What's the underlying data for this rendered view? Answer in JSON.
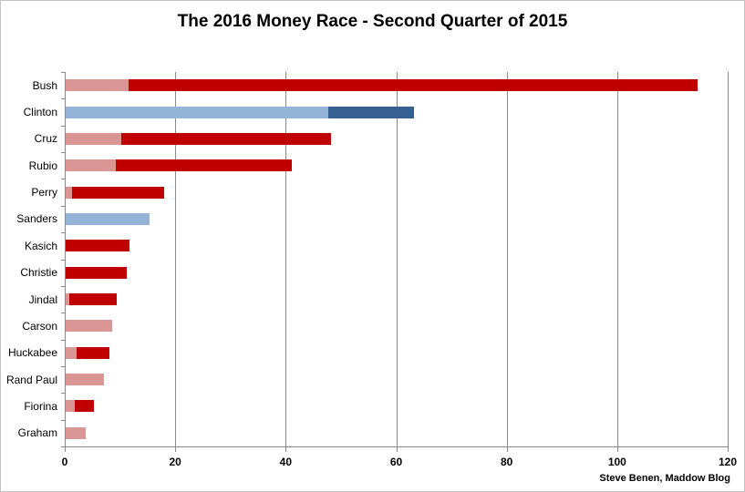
{
  "title": "The 2016 Money Race - Second Quarter of 2015",
  "attribution": "Steve Benen, Maddow Blog",
  "colors": {
    "light_red": "#d99694",
    "dark_red": "#c00000",
    "light_blue": "#95b3d7",
    "dark_blue": "#366092",
    "gridline": "#898989",
    "outer_border": "#c3c3c3"
  },
  "chart_data": {
    "type": "bar",
    "orientation": "horizontal",
    "stacked": true,
    "title": "The 2016 Money Race - Second Quarter of 2015",
    "xlabel": "",
    "ylabel": "",
    "xlim": [
      0,
      120
    ],
    "xticks": [
      0,
      20,
      40,
      60,
      80,
      100,
      120
    ],
    "grid": true,
    "legend": false,
    "categories": [
      "Bush",
      "Clinton",
      "Cruz",
      "Rubio",
      "Perry",
      "Sanders",
      "Kasich",
      "Christie",
      "Jindal",
      "Carson",
      "Huckabee",
      "Rand Paul",
      "Fiorina",
      "Graham"
    ],
    "bars": [
      {
        "label": "Bush",
        "total": 114.4,
        "segments": [
          {
            "value": 11.4,
            "color": "light_red"
          },
          {
            "value": 103.0,
            "color": "dark_red"
          }
        ]
      },
      {
        "label": "Clinton",
        "total": 63.1,
        "segments": [
          {
            "value": 47.5,
            "color": "light_blue"
          },
          {
            "value": 15.6,
            "color": "dark_blue"
          }
        ]
      },
      {
        "label": "Cruz",
        "total": 48.0,
        "segments": [
          {
            "value": 10.0,
            "color": "light_red"
          },
          {
            "value": 38.0,
            "color": "dark_red"
          }
        ]
      },
      {
        "label": "Rubio",
        "total": 41.0,
        "segments": [
          {
            "value": 9.0,
            "color": "light_red"
          },
          {
            "value": 32.0,
            "color": "dark_red"
          }
        ]
      },
      {
        "label": "Perry",
        "total": 17.9,
        "segments": [
          {
            "value": 1.1,
            "color": "light_red"
          },
          {
            "value": 16.8,
            "color": "dark_red"
          }
        ]
      },
      {
        "label": "Sanders",
        "total": 15.2,
        "segments": [
          {
            "value": 15.2,
            "color": "light_blue"
          }
        ]
      },
      {
        "label": "Kasich",
        "total": 11.5,
        "segments": [
          {
            "value": 11.5,
            "color": "dark_red"
          }
        ]
      },
      {
        "label": "Christie",
        "total": 11.0,
        "segments": [
          {
            "value": 11.0,
            "color": "dark_red"
          }
        ]
      },
      {
        "label": "Jindal",
        "total": 9.3,
        "segments": [
          {
            "value": 0.6,
            "color": "light_red"
          },
          {
            "value": 8.7,
            "color": "dark_red"
          }
        ]
      },
      {
        "label": "Carson",
        "total": 8.5,
        "segments": [
          {
            "value": 8.5,
            "color": "light_red"
          }
        ]
      },
      {
        "label": "Huckabee",
        "total": 8.0,
        "segments": [
          {
            "value": 2.0,
            "color": "light_red"
          },
          {
            "value": 6.0,
            "color": "dark_red"
          }
        ]
      },
      {
        "label": "Rand Paul",
        "total": 6.9,
        "segments": [
          {
            "value": 6.9,
            "color": "light_red"
          }
        ]
      },
      {
        "label": "Fiorina",
        "total": 5.1,
        "segments": [
          {
            "value": 1.6,
            "color": "light_red"
          },
          {
            "value": 3.5,
            "color": "dark_red"
          }
        ]
      },
      {
        "label": "Graham",
        "total": 3.7,
        "segments": [
          {
            "value": 3.7,
            "color": "light_red"
          }
        ]
      }
    ]
  }
}
